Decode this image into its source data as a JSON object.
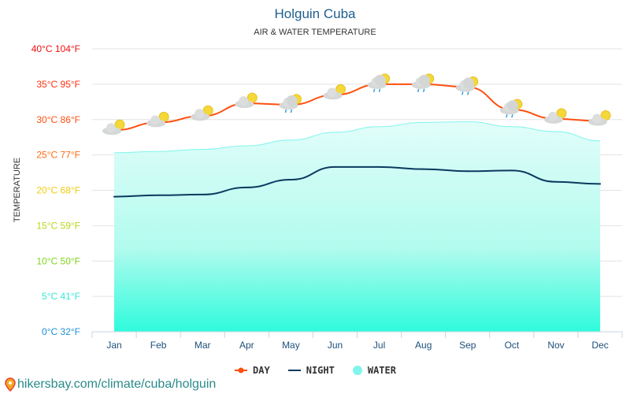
{
  "chart_data": {
    "type": "line",
    "title": "Holguin Cuba",
    "subtitle": "AIR & WATER TEMPERATURE",
    "ylabel": "TEMPERATURE",
    "ylim": [
      0,
      40
    ],
    "yticks": [
      {
        "value": 0,
        "label": "0°C 32°F",
        "color": "#1e90d8"
      },
      {
        "value": 5,
        "label": "5°C 41°F",
        "color": "#33e8d8"
      },
      {
        "value": 10,
        "label": "10°C 50°F",
        "color": "#7fd61c"
      },
      {
        "value": 15,
        "label": "15°C 59°F",
        "color": "#b8d81a"
      },
      {
        "value": 20,
        "label": "20°C 68°F",
        "color": "#f0cc10"
      },
      {
        "value": 25,
        "label": "25°C 77°F",
        "color": "#ff6a10"
      },
      {
        "value": 30,
        "label": "30°C 86°F",
        "color": "#ff5010"
      },
      {
        "value": 35,
        "label": "35°C 95°F",
        "color": "#ff3010"
      },
      {
        "value": 40,
        "label": "40°C 104°F",
        "color": "#ee1010"
      }
    ],
    "categories": [
      "Jan",
      "Feb",
      "Mar",
      "Apr",
      "May",
      "Jun",
      "Jul",
      "Aug",
      "Sep",
      "Oct",
      "Nov",
      "Dec"
    ],
    "grid": true,
    "legend_position": "bottom",
    "series": [
      {
        "name": "DAY",
        "color": "#ff4f10",
        "values": [
          28.5,
          29.6,
          30.5,
          32.3,
          32.1,
          33.5,
          35.0,
          35.0,
          34.6,
          31.4,
          30.1,
          29.8
        ]
      },
      {
        "name": "NIGHT",
        "color": "#0b3a5e",
        "values": [
          19.1,
          19.3,
          19.4,
          20.4,
          21.5,
          23.3,
          23.3,
          23.0,
          22.7,
          22.8,
          21.2,
          20.9
        ]
      },
      {
        "name": "WATER",
        "color": "#7ff5ec",
        "type": "area",
        "values": [
          25.3,
          25.5,
          25.8,
          26.3,
          27.1,
          28.2,
          29.0,
          29.6,
          29.7,
          29.0,
          28.3,
          27.0
        ]
      }
    ],
    "weather_icons": [
      "partly-cloudy",
      "partly-cloudy",
      "partly-cloudy",
      "partly-cloudy",
      "rain-sun",
      "partly-cloudy",
      "rain-sun",
      "rain-sun",
      "rain-sun",
      "rain-sun",
      "partly-cloudy",
      "partly-cloudy"
    ]
  },
  "footer": {
    "text": "hikersbay.com/climate/cuba/holguin",
    "icon": "map-pin-icon"
  }
}
